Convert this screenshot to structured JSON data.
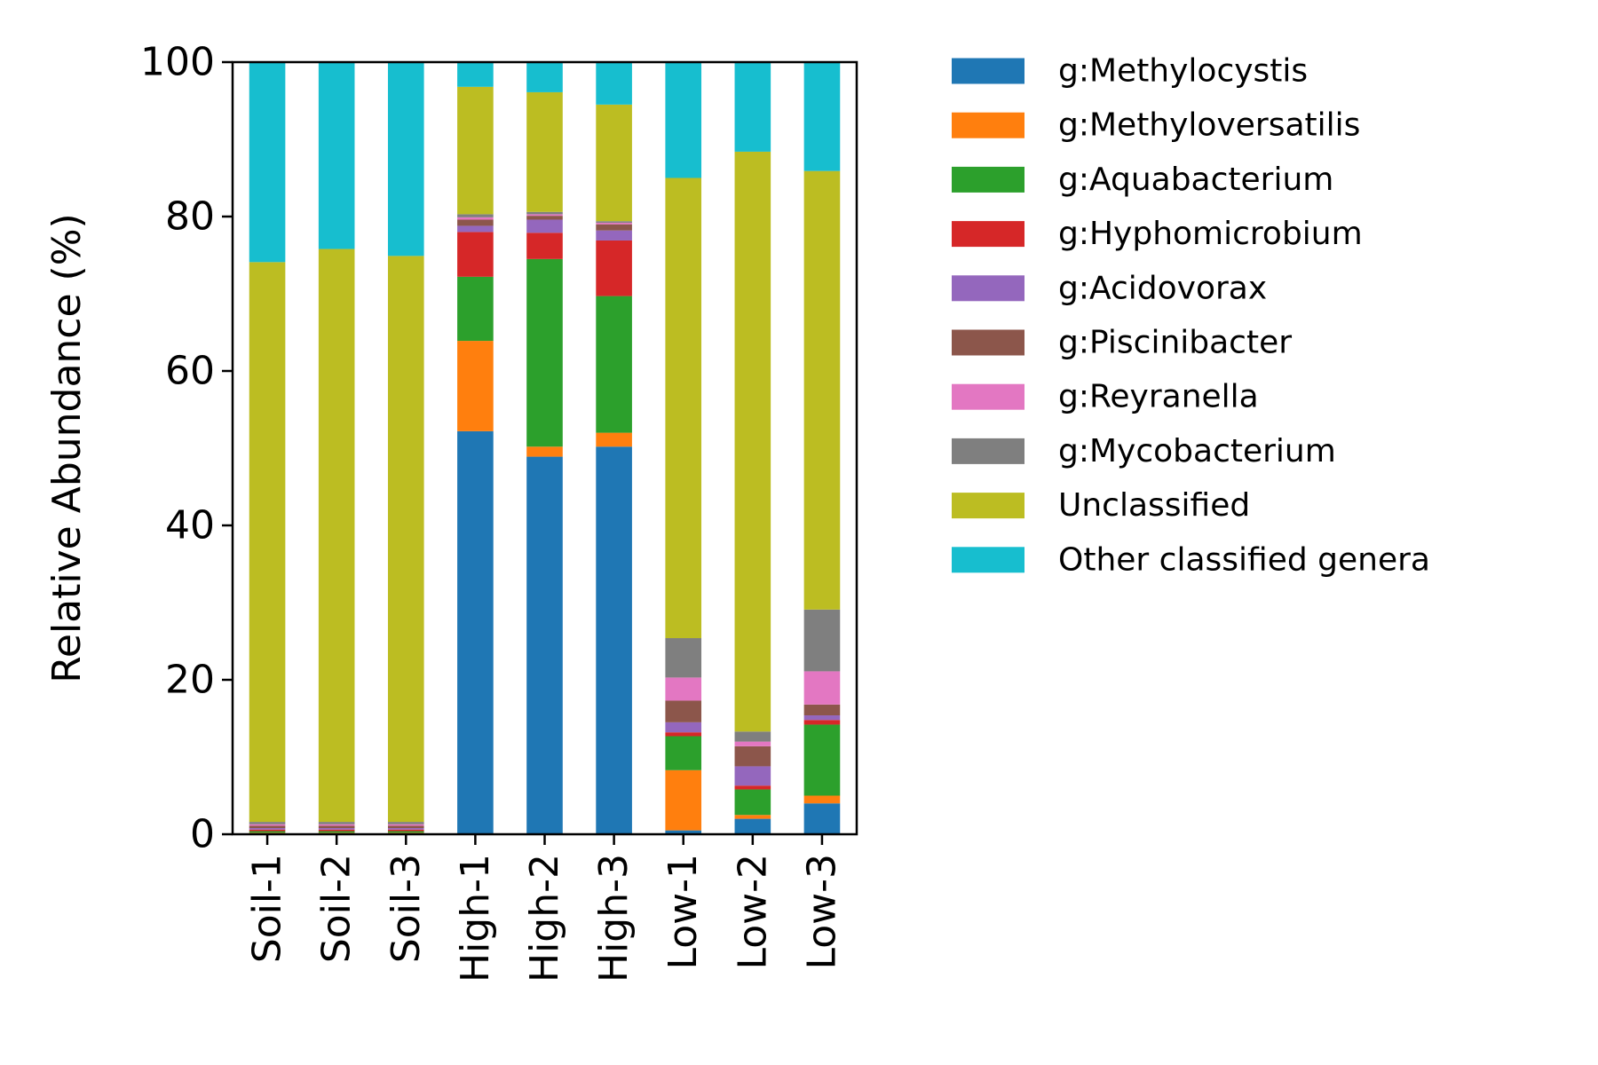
{
  "chart_data": {
    "type": "bar",
    "stacked": true,
    "title": "",
    "xlabel": "",
    "ylabel": "Relative Abundance (%)",
    "ylim": [
      0,
      100
    ],
    "yticks": [
      0,
      20,
      40,
      60,
      80,
      100
    ],
    "grid": false,
    "legend_position": "outside-right",
    "categories": [
      "Soil-1",
      "Soil-2",
      "Soil-3",
      "High-1",
      "High-2",
      "High-3",
      "Low-1",
      "Low-2",
      "Low-3"
    ],
    "series": [
      {
        "name": "g:Methylocystis",
        "color": "#1f77b4",
        "values": [
          0.1,
          0.1,
          0.1,
          52.2,
          48.9,
          50.2,
          0.5,
          2.0,
          4.0
        ]
      },
      {
        "name": "g:Methyloversatilis",
        "color": "#ff7f0e",
        "values": [
          0.1,
          0.1,
          0.1,
          11.7,
          1.3,
          1.8,
          7.8,
          0.5,
          1.0
        ]
      },
      {
        "name": "g:Aquabacterium",
        "color": "#2ca02c",
        "values": [
          0.2,
          0.2,
          0.2,
          8.3,
          24.3,
          17.7,
          4.4,
          3.3,
          9.2
        ]
      },
      {
        "name": "g:Hyphomicrobium",
        "color": "#d62728",
        "values": [
          0.2,
          0.2,
          0.2,
          5.8,
          3.4,
          7.2,
          0.5,
          0.5,
          0.6
        ]
      },
      {
        "name": "g:Acidovorax",
        "color": "#9467bd",
        "values": [
          0.2,
          0.2,
          0.2,
          0.8,
          1.7,
          1.3,
          1.3,
          2.5,
          0.6
        ]
      },
      {
        "name": "g:Piscinibacter",
        "color": "#8c564b",
        "values": [
          0.3,
          0.3,
          0.3,
          0.8,
          0.5,
          0.8,
          2.8,
          2.6,
          1.4
        ]
      },
      {
        "name": "g:Reyranella",
        "color": "#e377c2",
        "values": [
          0.2,
          0.2,
          0.2,
          0.3,
          0.2,
          0.2,
          3.0,
          0.6,
          4.3
        ]
      },
      {
        "name": "g:Mycobacterium",
        "color": "#7f7f7f",
        "values": [
          0.3,
          0.3,
          0.3,
          0.4,
          0.3,
          0.2,
          5.1,
          1.3,
          8.0
        ]
      },
      {
        "name": "Unclassified",
        "color": "#bcbd22",
        "values": [
          72.5,
          74.2,
          73.3,
          16.5,
          15.5,
          15.1,
          59.6,
          75.1,
          56.8
        ]
      },
      {
        "name": "Other classified genera",
        "color": "#17becf",
        "values": [
          25.9,
          24.2,
          25.1,
          3.2,
          3.9,
          5.5,
          15.0,
          11.6,
          14.1
        ]
      }
    ]
  }
}
